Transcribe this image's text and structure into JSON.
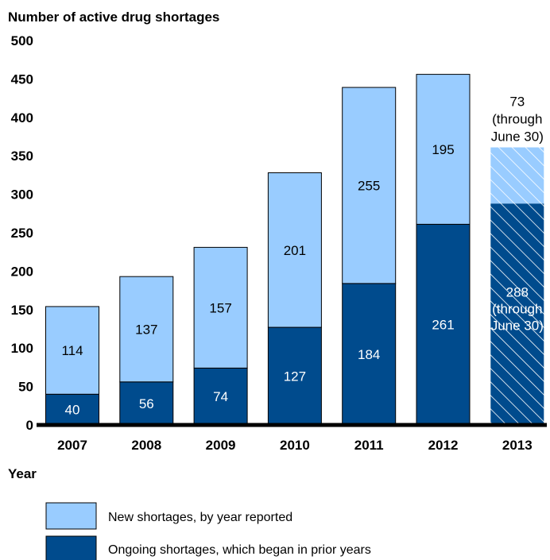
{
  "chart_data": {
    "type": "bar",
    "stacked": true,
    "ylabel": "Number of active drug shortages",
    "xlabel": "Year",
    "ylim": [
      0,
      500
    ],
    "yticks": [
      0,
      50,
      100,
      150,
      200,
      250,
      300,
      350,
      400,
      450,
      500
    ],
    "categories": [
      "2007",
      "2008",
      "2009",
      "2010",
      "2011",
      "2012",
      "2013"
    ],
    "series": [
      {
        "name": "Ongoing shortages, which began in prior years",
        "color": "#004b8d",
        "values": [
          40,
          56,
          74,
          127,
          184,
          261,
          288
        ]
      },
      {
        "name": "New shortages, by year reported",
        "color": "#99ccff",
        "values": [
          114,
          137,
          157,
          201,
          255,
          195,
          73
        ]
      }
    ],
    "partial_category": "2013",
    "annotations": {
      "ongoing_2013": [
        "288",
        "(through",
        "June 30)"
      ],
      "new_2013": [
        "73",
        "(through",
        "June 30)"
      ]
    },
    "grid": false,
    "legend_position": "bottom-left"
  }
}
